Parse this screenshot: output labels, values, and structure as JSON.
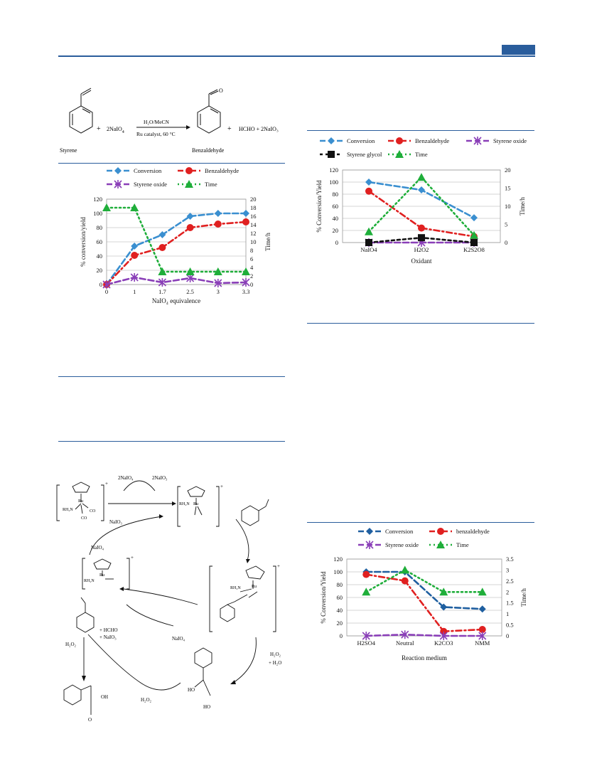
{
  "scheme": {
    "reagent": "2NaIO",
    "reagent_sub": "4",
    "plus1": "+",
    "arrow_top": "H₂O/MeCN",
    "arrow_bottom": "Ru catalyst, 60 °C",
    "product_label": "Benzaldehyde",
    "styrene_label": "Styrene",
    "byproducts": "HCHO  +  2NaIO₃",
    "plus2": "+",
    "o_label": "O"
  },
  "cycle": {
    "top_left_reagent": "2NaIO₄",
    "top_right_reagent": "2NaIO₃",
    "left_in": "NaIO₄",
    "left_out": "NaIO₃",
    "right_h2o2": "H₂O₂",
    "right_h2o": "+ H₂O",
    "bottom_naio4": "NaIO₄",
    "hcho_line1": "+ HCHO",
    "hcho_line2": "+ NaIO₃",
    "h2o2_left": "H₂O₂",
    "h2o2_bottom": "H₂O₂",
    "oh_acid": "OH",
    "o_acid": "O",
    "ho_diol1": "HO",
    "ho_diol2": "HO",
    "nh2_1": "RH₂N",
    "nh2_2": "RH₂N",
    "nh2_3": "RH₂N",
    "nh2_4": "RH₂N",
    "co1": "CO",
    "co2": "CO",
    "ru_ii": "Ru",
    "ru_vi": "Ru",
    "ru_iv": "Ru",
    "ru_vi2": "Ru",
    "plus_charge": "+"
  },
  "chart_data": [
    {
      "type": "line",
      "title": "",
      "xlabel": "NaIO₄ equivalence",
      "ylabel": "% conversion/yield",
      "y2label": "Time/h",
      "categories": [
        "0",
        "1",
        "1.7",
        "2.5",
        "3",
        "3.3"
      ],
      "ylim": [
        0,
        120
      ],
      "yticks": [
        "0",
        "20",
        "40",
        "60",
        "80",
        "100",
        "120"
      ],
      "y2lim": [
        0,
        20
      ],
      "y2ticks": [
        "0",
        "2",
        "4",
        "6",
        "8",
        "10",
        "12",
        "14",
        "16",
        "18",
        "20"
      ],
      "grid": true,
      "legend": "top",
      "series": [
        {
          "name": "Conversion",
          "axis": "left",
          "color": "#3a8fd0",
          "marker": "diamond",
          "dash": "8,4",
          "values": [
            0,
            54,
            70,
            96,
            100,
            100
          ]
        },
        {
          "name": "Benzaldehyde",
          "axis": "left",
          "color": "#e02020",
          "marker": "circle",
          "dash": "8,4,2,4",
          "values": [
            0,
            41,
            52,
            80,
            85,
            88
          ]
        },
        {
          "name": "Styrene oxide",
          "axis": "left",
          "color": "#8a3fb8",
          "marker": "star",
          "dash": "8,4",
          "values": [
            0,
            10,
            3,
            9,
            2,
            3
          ]
        },
        {
          "name": "Time",
          "axis": "right",
          "color": "#1fae3a",
          "marker": "triangle",
          "dash": "2,4",
          "values": [
            18,
            18,
            3,
            3,
            3,
            3
          ]
        }
      ]
    },
    {
      "type": "line",
      "title": "",
      "xlabel": "Oxidant",
      "ylabel": "% Conversion/Yield",
      "y2label": "Time/h",
      "categories": [
        "NaIO4",
        "H2O2",
        "K2S2O8"
      ],
      "ylim": [
        0,
        120
      ],
      "yticks": [
        "0",
        "20",
        "40",
        "60",
        "80",
        "100",
        "120"
      ],
      "y2lim": [
        0,
        20
      ],
      "y2ticks": [
        "0",
        "5",
        "10",
        "15",
        "20"
      ],
      "grid": true,
      "legend": "top",
      "series": [
        {
          "name": "Conversion",
          "axis": "left",
          "color": "#3a8fd0",
          "marker": "diamond",
          "dash": "8,4",
          "values": [
            100,
            87,
            41
          ]
        },
        {
          "name": "Benzaldehyde",
          "axis": "left",
          "color": "#e02020",
          "marker": "circle",
          "dash": "8,4,2,4",
          "values": [
            85,
            24,
            10
          ]
        },
        {
          "name": "Styrene oxide",
          "axis": "left",
          "color": "#8a3fb8",
          "marker": "star",
          "dash": "8,4",
          "values": [
            0,
            0,
            0
          ]
        },
        {
          "name": "Styrene glycol",
          "axis": "left",
          "color": "#111111",
          "marker": "square",
          "dash": "4,4",
          "values": [
            0,
            8,
            0
          ]
        },
        {
          "name": "Time",
          "axis": "right",
          "color": "#1fae3a",
          "marker": "triangle",
          "dash": "2,4",
          "values": [
            3,
            18,
            2
          ]
        }
      ]
    },
    {
      "type": "line",
      "title": "",
      "xlabel": "Reaction medium",
      "ylabel": "% Conversion/Yield",
      "y2label": "Time/h",
      "categories": [
        "H2SO4",
        "Neutral",
        "K2CO3",
        "NMM"
      ],
      "ylim": [
        0,
        120
      ],
      "yticks": [
        "0",
        "20",
        "40",
        "60",
        "80",
        "100",
        "120"
      ],
      "y2lim": [
        0,
        3.5
      ],
      "y2ticks": [
        "0",
        "0.5",
        "1",
        "1.5",
        "2",
        "2.5",
        "3",
        "3.5"
      ],
      "grid": true,
      "legend": "top",
      "series": [
        {
          "name": "Conversion",
          "axis": "left",
          "color": "#1f5fa0",
          "marker": "diamond",
          "dash": "8,4",
          "values": [
            100,
            100,
            45,
            42
          ]
        },
        {
          "name": "benzaldehyde",
          "axis": "left",
          "color": "#e02020",
          "marker": "circle",
          "dash": "8,4,2,4",
          "values": [
            96,
            86,
            7,
            10
          ]
        },
        {
          "name": "Styrene oxide",
          "axis": "left",
          "color": "#8a3fb8",
          "marker": "star",
          "dash": "8,4",
          "values": [
            0,
            2,
            0,
            0
          ]
        },
        {
          "name": "Time",
          "axis": "right",
          "color": "#1fae3a",
          "marker": "triangle",
          "dash": "2,4",
          "values": [
            2,
            3,
            2,
            2
          ]
        }
      ]
    }
  ]
}
